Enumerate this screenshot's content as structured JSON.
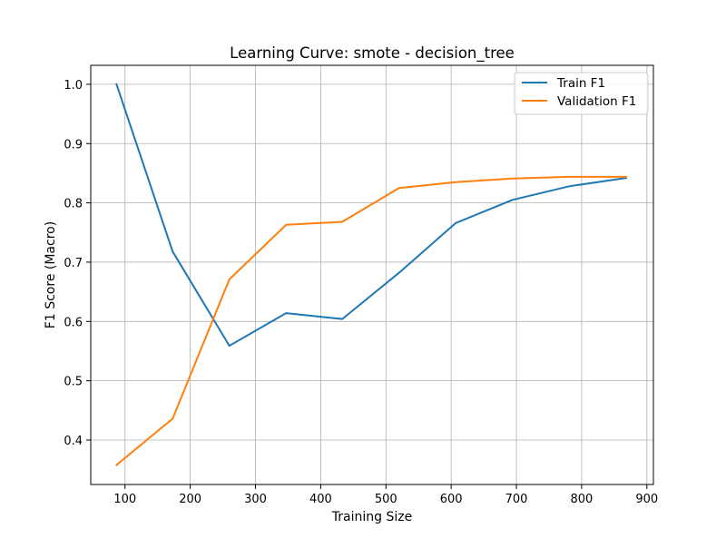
{
  "chart_data": {
    "type": "line",
    "title": "Learning Curve: smote - decision_tree",
    "xlabel": "Training Size",
    "ylabel": "F1 Score (Macro)",
    "xlim": [
      47.5,
      910
    ],
    "ylim": [
      0.325,
      1.032
    ],
    "x_ticks": [
      100,
      200,
      300,
      400,
      500,
      600,
      700,
      800,
      900
    ],
    "y_ticks": [
      0.4,
      0.5,
      0.6,
      0.7,
      0.8,
      0.9,
      1.0
    ],
    "y_tick_labels": [
      "0.4",
      "0.5",
      "0.6",
      "0.7",
      "0.8",
      "0.9",
      "1.0"
    ],
    "grid": true,
    "legend_position": "top-right",
    "x": [
      87,
      173,
      260,
      347,
      433,
      520,
      607,
      694,
      781,
      868
    ],
    "series": [
      {
        "name": "Train F1",
        "color": "#1f77b4",
        "values": [
          1.0,
          0.718,
          0.559,
          0.614,
          0.604,
          0.682,
          0.766,
          0.805,
          0.828,
          0.842
        ]
      },
      {
        "name": "Validation F1",
        "color": "#ff7f0e",
        "values": [
          0.358,
          0.436,
          0.671,
          0.763,
          0.768,
          0.825,
          0.835,
          0.841,
          0.844,
          0.844
        ]
      }
    ]
  }
}
